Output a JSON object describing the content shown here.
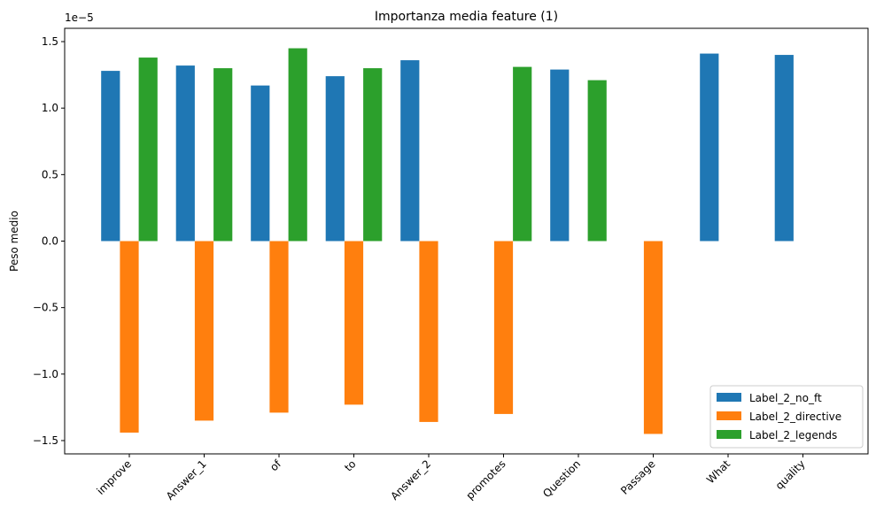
{
  "chart_data": {
    "type": "bar",
    "title": "Importanza media feature (1)",
    "xlabel": "",
    "ylabel": "Peso medio",
    "scale_label": "1e−5",
    "categories": [
      "improve",
      "Answer_1",
      "of",
      "to",
      "Answer_2",
      "promotes",
      "Question",
      "Passage",
      "What",
      "quality"
    ],
    "series": [
      {
        "name": "Label_2_no_ft",
        "color": "#1f77b4",
        "values": [
          1.28,
          1.32,
          1.17,
          1.24,
          1.36,
          null,
          1.29,
          null,
          1.41,
          1.4
        ]
      },
      {
        "name": "Label_2_directive",
        "color": "#ff7f0e",
        "values": [
          -1.44,
          -1.35,
          -1.29,
          -1.23,
          -1.36,
          -1.3,
          null,
          -1.45,
          null,
          null
        ]
      },
      {
        "name": "Label_2_legends",
        "color": "#2ca02c",
        "values": [
          1.38,
          1.3,
          1.45,
          1.3,
          null,
          1.31,
          1.21,
          null,
          null,
          null
        ]
      }
    ],
    "ylim": [
      -1.6,
      1.6
    ],
    "yticks": [
      -1.5,
      -1.0,
      -0.5,
      0.0,
      0.5,
      1.0,
      1.5
    ],
    "ytick_labels": [
      "−1.5",
      "−1.0",
      "−0.5",
      "0.0",
      "0.5",
      "1.0",
      "1.5"
    ],
    "grid": false,
    "legend_position": "lower-right"
  }
}
